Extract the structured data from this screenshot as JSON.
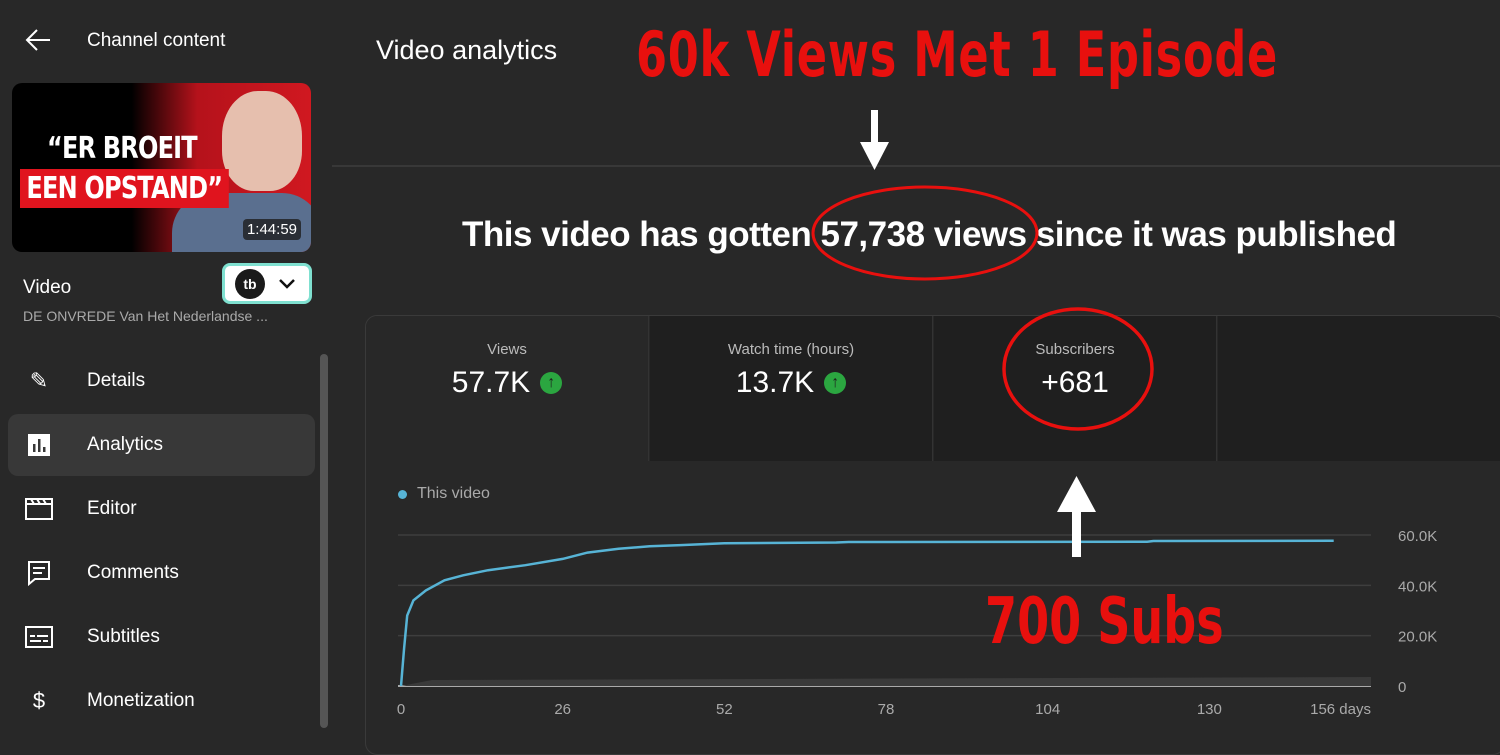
{
  "sidebar": {
    "back_icon": "arrow-left-icon",
    "title": "Channel content",
    "thumbnail": {
      "line1": "“ER BROEIT",
      "line2": "EEN OPSTAND”",
      "duration": "1:44:59"
    },
    "video_label": "Video",
    "video_title": "DE ONVREDE Van Het Nederlandse ...",
    "extension_logo": "tb",
    "items": [
      {
        "label": "Details",
        "icon": "pencil-icon",
        "active": false
      },
      {
        "label": "Analytics",
        "icon": "bar-chart-icon",
        "active": true
      },
      {
        "label": "Editor",
        "icon": "clapperboard-icon",
        "active": false
      },
      {
        "label": "Comments",
        "icon": "comment-icon",
        "active": false
      },
      {
        "label": "Subtitles",
        "icon": "subtitles-icon",
        "active": false
      },
      {
        "label": "Monetization",
        "icon": "dollar-icon",
        "active": false
      }
    ]
  },
  "main": {
    "title": "Video analytics",
    "headline": {
      "before": "This video has gotten ",
      "highlight": "57,738 views",
      "after": " since it was published"
    },
    "metrics": [
      {
        "label": "Views",
        "value": "57.7K",
        "trend": "up"
      },
      {
        "label": "Watch time (hours)",
        "value": "13.7K",
        "trend": "up"
      },
      {
        "label": "Subscribers",
        "value": "+681",
        "trend": null
      },
      {
        "label": "",
        "value": "",
        "trend": null
      }
    ]
  },
  "annotations": {
    "top": "60k Views Met 1 Episode",
    "bottom": "700 Subs",
    "color": "#e8100e"
  },
  "chart_data": {
    "type": "line",
    "legend": [
      {
        "name": "This video",
        "color": "#57b4d6"
      }
    ],
    "x_ticks": [
      "0",
      "26",
      "52",
      "78",
      "104",
      "130",
      "156 days"
    ],
    "y_ticks": [
      "0",
      "20.0K",
      "40.0K",
      "60.0K"
    ],
    "xlim": [
      0,
      156
    ],
    "ylim": [
      0,
      60000
    ],
    "grid": true,
    "series": [
      {
        "name": "This video",
        "x": [
          0,
          0.5,
          1,
          2,
          4,
          7,
          10,
          14,
          20,
          26,
          30,
          35,
          40,
          45,
          52,
          70,
          72,
          120,
          121,
          150
        ],
        "y": [
          0,
          15000,
          28000,
          34000,
          38000,
          42000,
          44000,
          46000,
          48000,
          50500,
          53000,
          54500,
          55500,
          56000,
          56700,
          57000,
          57200,
          57300,
          57600,
          57700
        ]
      }
    ]
  }
}
